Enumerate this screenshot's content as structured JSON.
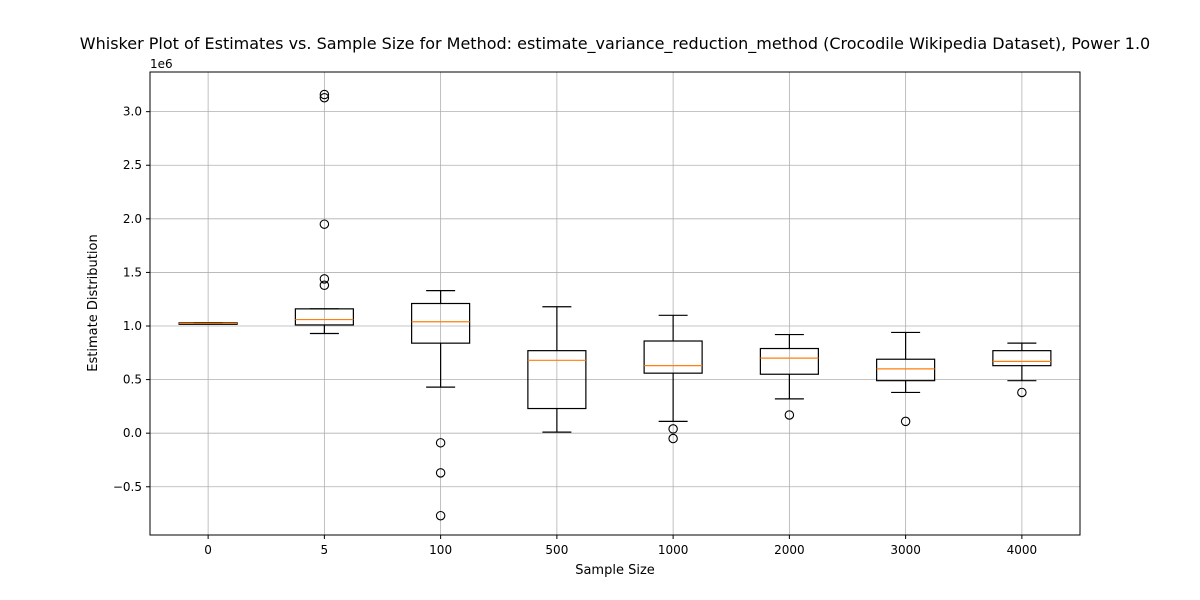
{
  "chart_data": {
    "type": "boxplot",
    "title": "Whisker Plot of Estimates vs. Sample Size for Method: estimate_variance_reduction_method (Crocodile Wikipedia Dataset), Power 1.0",
    "xlabel": "Sample Size",
    "ylabel": "Estimate Distribution",
    "y_offset_label": "1e6",
    "ylim": [
      -950000,
      3370000
    ],
    "yticks": [
      -500000,
      0,
      500000,
      1000000,
      1500000,
      2000000,
      2500000,
      3000000
    ],
    "ytick_labels": [
      "−0.5",
      "0.0",
      "0.5",
      "1.0",
      "1.5",
      "2.0",
      "2.5",
      "3.0"
    ],
    "grid": true,
    "colors": {
      "box": "#000000",
      "median": "#ff7f0e",
      "grid": "#b0b0b0"
    },
    "categories": [
      "0",
      "5",
      "100",
      "500",
      "1000",
      "2000",
      "3000",
      "4000"
    ],
    "boxes": [
      {
        "category": "0",
        "whisker_low": 1020000,
        "q1": 1020000,
        "median": 1025000,
        "q3": 1030000,
        "whisker_high": 1030000,
        "outliers": []
      },
      {
        "category": "5",
        "whisker_low": 930000,
        "q1": 1010000,
        "median": 1060000,
        "q3": 1160000,
        "whisker_high": 1160000,
        "outliers": [
          1380000,
          1440000,
          1950000,
          3130000,
          3160000
        ]
      },
      {
        "category": "100",
        "whisker_low": 430000,
        "q1": 840000,
        "median": 1040000,
        "q3": 1210000,
        "whisker_high": 1330000,
        "outliers": [
          -90000,
          -370000,
          -770000
        ]
      },
      {
        "category": "500",
        "whisker_low": 10000,
        "q1": 230000,
        "median": 680000,
        "q3": 770000,
        "whisker_high": 1180000,
        "outliers": []
      },
      {
        "category": "1000",
        "whisker_low": 110000,
        "q1": 560000,
        "median": 630000,
        "q3": 860000,
        "whisker_high": 1100000,
        "outliers": [
          40000,
          -50000
        ]
      },
      {
        "category": "2000",
        "whisker_low": 320000,
        "q1": 550000,
        "median": 700000,
        "q3": 790000,
        "whisker_high": 920000,
        "outliers": [
          170000
        ]
      },
      {
        "category": "3000",
        "whisker_low": 380000,
        "q1": 490000,
        "median": 600000,
        "q3": 690000,
        "whisker_high": 940000,
        "outliers": [
          110000
        ]
      },
      {
        "category": "4000",
        "whisker_low": 490000,
        "q1": 630000,
        "median": 670000,
        "q3": 770000,
        "whisker_high": 840000,
        "outliers": [
          380000
        ]
      }
    ]
  }
}
